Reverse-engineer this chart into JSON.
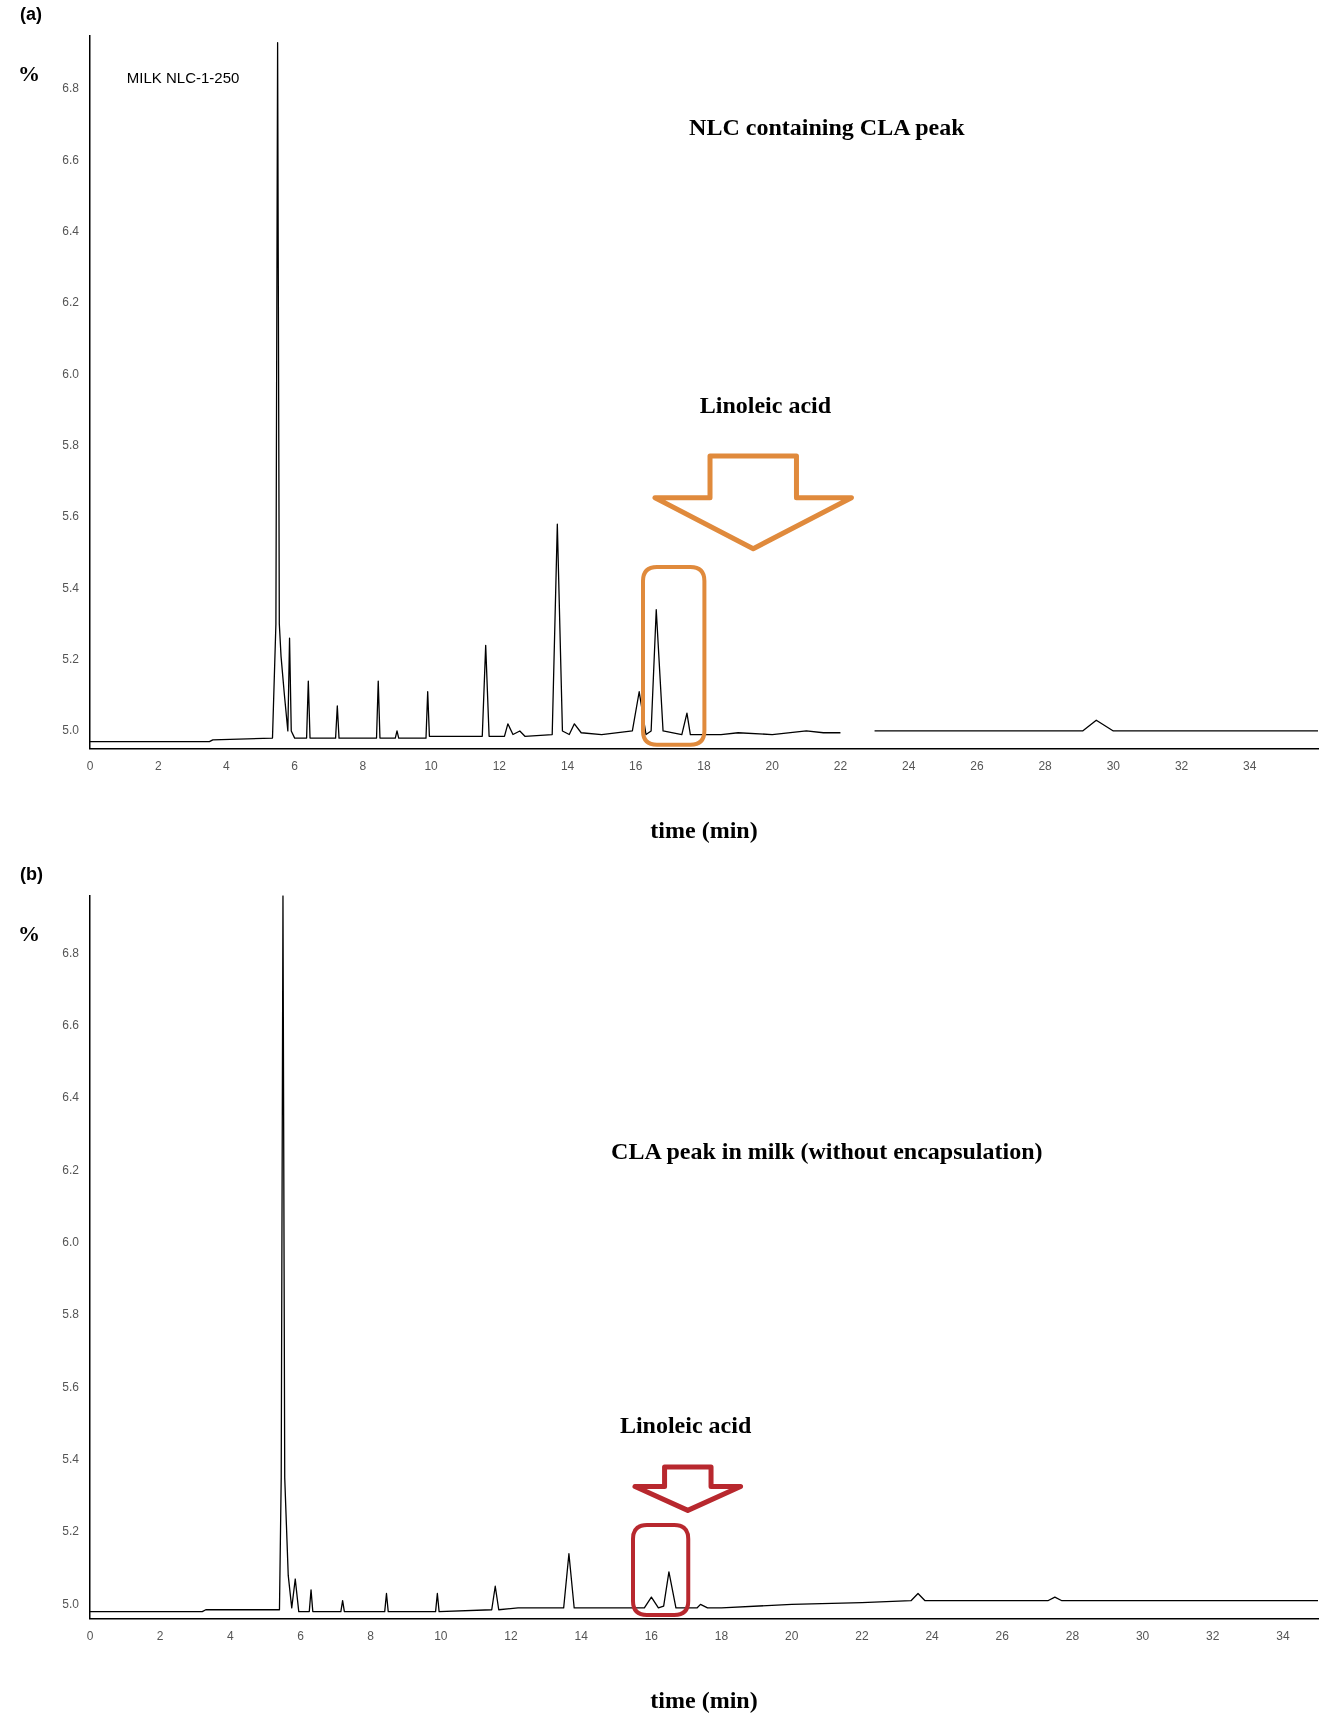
{
  "chart_data": [
    {
      "type": "line",
      "title": "(a)",
      "ylabel": "%",
      "xlabel": "time (min)",
      "xlim": [
        0,
        36
      ],
      "ylim": [
        4.95,
        6.95
      ],
      "xticks": [
        0,
        2,
        4,
        6,
        8,
        10,
        12,
        14,
        16,
        18,
        20,
        22,
        24,
        26,
        28,
        30,
        32,
        34
      ],
      "yticks": [
        {
          "value": 5,
          "label": "5.0"
        },
        {
          "value": 5.2,
          "label": "5.2"
        },
        {
          "value": 5.4,
          "label": "5.4"
        },
        {
          "value": 5.6,
          "label": "5.6"
        },
        {
          "value": 5.8,
          "label": "5.8"
        },
        {
          "value": 6,
          "label": "6.0"
        },
        {
          "value": 6.2,
          "label": "6.2"
        },
        {
          "value": 6.4,
          "label": "6.4"
        },
        {
          "value": 6.6,
          "label": "6.6"
        },
        {
          "value": 6.8,
          "label": "6.8"
        }
      ],
      "grid": false,
      "legend": false,
      "marker": "none",
      "line_style": "solid",
      "series": [
        {
          "color": "#000000",
          "x": [
            0,
            3.5,
            3.6,
            5.35,
            5.45,
            5.5,
            5.55,
            5.6,
            5.7,
            5.8,
            5.85,
            5.9,
            6.0,
            6.35,
            6.4,
            6.45,
            7.2,
            7.25,
            7.3,
            8.4,
            8.45,
            8.5,
            8.95,
            9.0,
            9.05,
            9.85,
            9.9,
            9.95,
            11.5,
            11.6,
            11.7,
            12.15,
            12.25,
            12.4,
            12.6,
            12.75,
            13.55,
            13.7,
            13.85,
            14.05,
            14.2,
            14.4,
            15.0,
            15.9,
            16.1,
            16.3,
            16.45,
            16.6,
            16.8,
            17.35,
            17.5,
            17.6,
            18.5,
            19,
            20,
            21,
            21.5,
            22,
            22.5,
            23,
            24,
            26,
            28,
            29.1,
            29.5,
            30,
            32,
            36
          ],
          "values": [
            4.97,
            4.97,
            4.975,
            4.98,
            5.3,
            6.93,
            5.3,
            5.21,
            5.1,
            5.0,
            5.26,
            5.0,
            4.98,
            4.98,
            5.14,
            4.98,
            4.98,
            5.07,
            4.98,
            4.98,
            5.14,
            4.98,
            4.98,
            5.0,
            4.98,
            4.98,
            5.11,
            4.985,
            4.985,
            5.24,
            4.985,
            4.985,
            5.02,
            4.99,
            5.0,
            4.985,
            4.99,
            5.58,
            5.0,
            4.99,
            5.02,
            4.995,
            4.99,
            5.0,
            5.11,
            4.99,
            5.0,
            5.34,
            5.0,
            4.99,
            5.05,
            4.99,
            4.99,
            4.995,
            4.99,
            5.0,
            4.995,
            4.995,
            null,
            5.0,
            5.0,
            5.0,
            5.0,
            5.0,
            5.03,
            5.0,
            5.0,
            5.0
          ]
        }
      ],
      "annotations": [
        "MILK NLC-1-250",
        "NLC containing CLA peak",
        "Linoleic acid"
      ]
    },
    {
      "type": "line",
      "title": "(b)",
      "ylabel": "%",
      "xlabel": "time (min)",
      "xlim": [
        0,
        35
      ],
      "ylim": [
        4.96,
        6.96
      ],
      "xticks": [
        0,
        2,
        4,
        6,
        8,
        10,
        12,
        14,
        16,
        18,
        20,
        22,
        24,
        26,
        28,
        30,
        32,
        34
      ],
      "yticks": [
        {
          "value": 5,
          "label": "5.0"
        },
        {
          "value": 5.2,
          "label": "5.2"
        },
        {
          "value": 5.4,
          "label": "5.4"
        },
        {
          "value": 5.6,
          "label": "5.6"
        },
        {
          "value": 5.8,
          "label": "5.8"
        },
        {
          "value": 6,
          "label": "6.0"
        },
        {
          "value": 6.2,
          "label": "6.2"
        },
        {
          "value": 6.4,
          "label": "6.4"
        },
        {
          "value": 6.6,
          "label": "6.6"
        },
        {
          "value": 6.8,
          "label": "6.8"
        }
      ],
      "grid": false,
      "legend": false,
      "marker": "none",
      "line_style": "solid",
      "series": [
        {
          "color": "#000000",
          "x": [
            0,
            3.2,
            3.3,
            5.4,
            5.45,
            5.5,
            5.55,
            5.65,
            5.75,
            5.85,
            5.95,
            6.25,
            6.3,
            6.35,
            7.15,
            7.2,
            7.25,
            8.4,
            8.45,
            8.5,
            9.85,
            9.9,
            9.95,
            11.45,
            11.55,
            11.65,
            12.2,
            12.6,
            13.5,
            13.65,
            13.8,
            14.2,
            15.8,
            16.0,
            16.2,
            16.35,
            16.5,
            16.7,
            17.3,
            17.4,
            17.6,
            18,
            20,
            22,
            23.4,
            23.6,
            23.8,
            27.3,
            27.5,
            27.7,
            35
          ],
          "values": [
            4.98,
            4.98,
            4.985,
            4.985,
            5.35,
            6.96,
            5.35,
            5.08,
            4.99,
            5.07,
            4.98,
            4.98,
            5.04,
            4.98,
            4.98,
            5.01,
            4.98,
            4.98,
            5.03,
            4.98,
            4.98,
            5.03,
            4.98,
            4.985,
            5.05,
            4.985,
            4.99,
            4.99,
            4.99,
            5.14,
            4.99,
            4.99,
            4.99,
            5.02,
            4.99,
            4.995,
            5.09,
            4.99,
            4.99,
            5.0,
            4.99,
            4.99,
            5.0,
            5.005,
            5.01,
            5.03,
            5.01,
            5.01,
            5.02,
            5.01,
            5.01
          ]
        }
      ],
      "annotations": [
        "CLA peak in milk (without encapsulation)",
        "Linoleic acid"
      ]
    }
  ]
}
